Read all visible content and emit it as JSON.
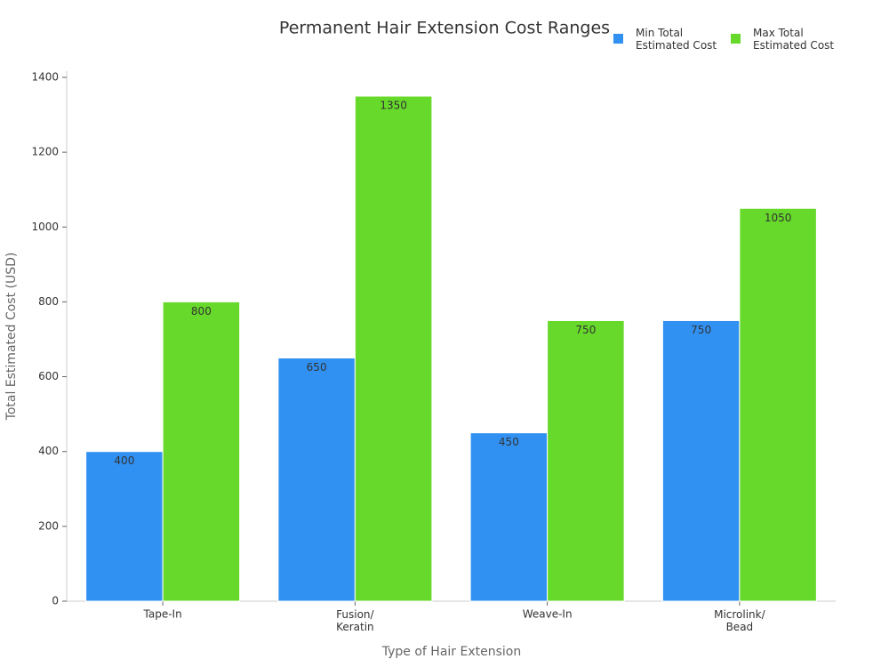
{
  "chart_data": {
    "type": "bar",
    "title": "Permanent Hair Extension Cost Ranges",
    "x_label": "Type of Hair Extension",
    "y_label": "Total Estimated Cost (USD)",
    "categories": [
      "Tape-In",
      "Fusion/\nKeratin",
      "Weave-In",
      "Microlink/\nBead"
    ],
    "series": [
      {
        "name": "Min Total\nEstimated Cost",
        "color": "#3091f2",
        "values": [
          400,
          650,
          450,
          750
        ]
      },
      {
        "name": "Max Total\nEstimated Cost",
        "color": "#66d92a",
        "values": [
          800,
          1350,
          750,
          1050
        ]
      }
    ],
    "ylim": [
      0,
      1400
    ],
    "yticks": [
      0,
      200,
      400,
      600,
      800,
      1000,
      1200,
      1400
    ],
    "grid": false
  }
}
